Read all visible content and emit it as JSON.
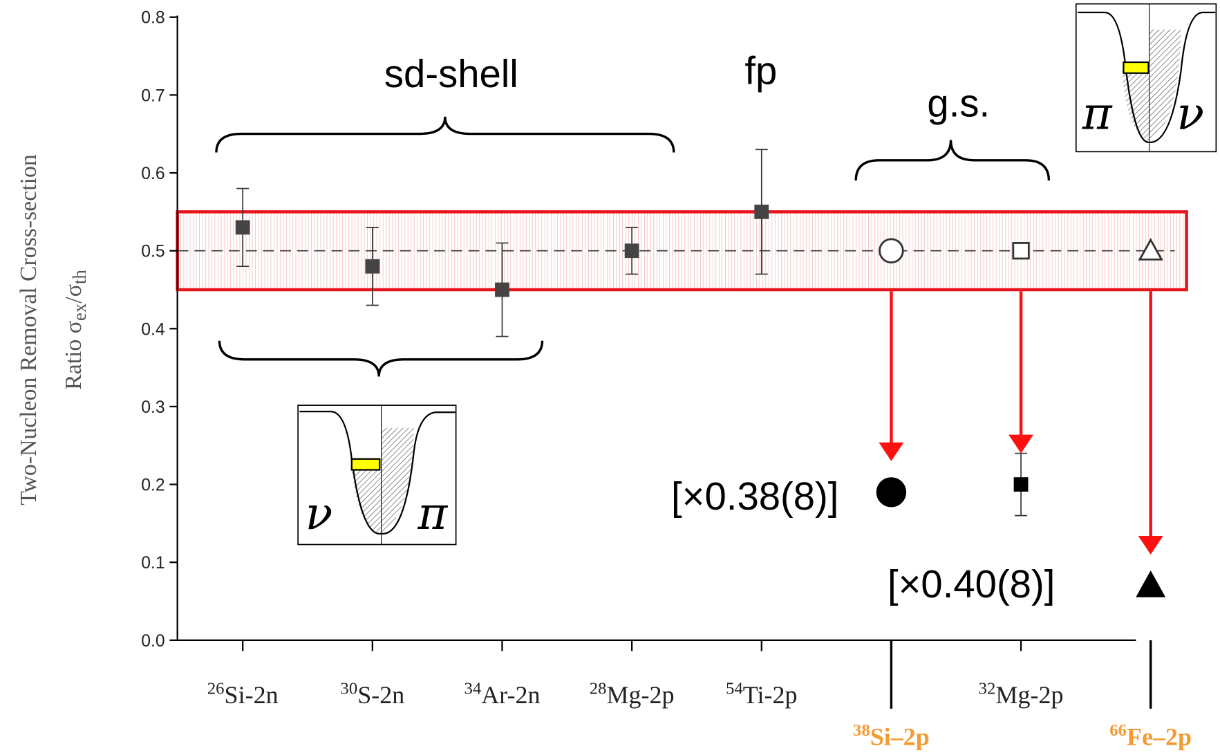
{
  "chart_data": {
    "type": "errorbar-scatter",
    "ylabel_line1": "Two-Nucleon Removal Cross-section",
    "ylabel_line2": [
      "Ratio  σ",
      "ex",
      "/σ",
      "th"
    ],
    "categories": [
      "Si-2n",
      "S-2n",
      "Ar-2n",
      "Mg-2p",
      "Ti-2p",
      "Si–2p",
      "Mg-2p",
      "Fe–2p"
    ],
    "category_mass": [
      "26",
      "30",
      "34",
      "28",
      "54",
      "38",
      "32",
      "66"
    ],
    "highlight_categories": [
      false,
      false,
      false,
      false,
      false,
      true,
      false,
      true
    ],
    "highlight_color": "#f59a30",
    "ylim": [
      0,
      0.8
    ],
    "yticks": [
      {
        "value": 0,
        "label": "0.0"
      },
      0.1,
      0.2,
      0.3,
      0.4,
      {
        "value": 0.5,
        "label": "0.5"
      },
      0.6,
      0.7,
      0.8
    ],
    "band": [
      0.45,
      0.55
    ],
    "band_color": "#e8141b",
    "reference_line": 0.5,
    "series": [
      {
        "marker": "square",
        "filled": true,
        "color": "#444444",
        "values": [
          0.53,
          0.48,
          0.45,
          0.5,
          0.55,
          null,
          null,
          null
        ],
        "errors": [
          0.05,
          0.05,
          0.06,
          0.03,
          0.08,
          null,
          null,
          null
        ]
      },
      {
        "markers": [
          null,
          null,
          null,
          null,
          null,
          "circle",
          "square",
          "triangle"
        ],
        "filled": false,
        "color": "#333333",
        "values": [
          null,
          null,
          null,
          null,
          null,
          0.5,
          0.5,
          0.5
        ]
      },
      {
        "markers": [
          null,
          null,
          null,
          null,
          null,
          "circle",
          "square",
          "triangle"
        ],
        "filled": true,
        "color": "#000000",
        "values": [
          null,
          null,
          null,
          null,
          null,
          0.19,
          0.2,
          0.07
        ],
        "errors": [
          null,
          null,
          null,
          null,
          null,
          null,
          0.04,
          null
        ]
      }
    ],
    "arrow_color": "#ff1010",
    "annotations": {
      "sd_shell": "sd-shell",
      "fp": "fp",
      "gs": "g.s.",
      "factor_si": "[×0.38(8)]",
      "factor_fe": "[×0.40(8)]",
      "inset1_left": "ν",
      "inset1_right": "π",
      "inset2_left": "π",
      "inset2_right": "ν"
    }
  }
}
